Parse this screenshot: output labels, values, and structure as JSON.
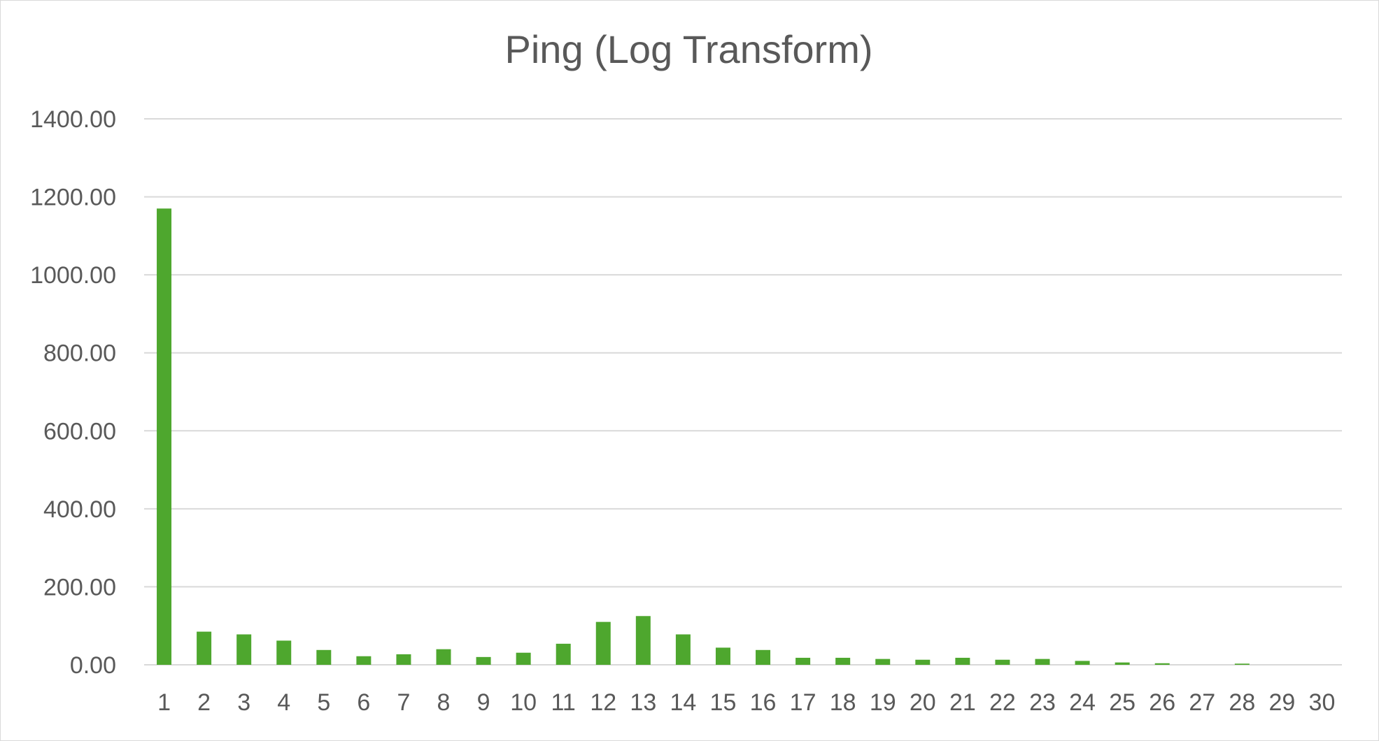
{
  "chart_data": {
    "type": "bar",
    "title": "Ping (Log Transform)",
    "xlabel": "",
    "ylabel": "",
    "categories": [
      "1",
      "2",
      "3",
      "4",
      "5",
      "6",
      "7",
      "8",
      "9",
      "10",
      "11",
      "12",
      "13",
      "14",
      "15",
      "16",
      "17",
      "18",
      "19",
      "20",
      "21",
      "22",
      "23",
      "24",
      "25",
      "26",
      "27",
      "28",
      "29",
      "30"
    ],
    "series": [
      {
        "values": [
          1170,
          85,
          78,
          62,
          38,
          22,
          27,
          40,
          20,
          31,
          54,
          110,
          125,
          78,
          44,
          38,
          18,
          18,
          15,
          13,
          18,
          13,
          15,
          10,
          6,
          4,
          0,
          3,
          0,
          0
        ],
        "color": "#4ea72e"
      }
    ],
    "ylim": [
      0,
      1400
    ],
    "yticks": [
      "0.00",
      "200.00",
      "400.00",
      "600.00",
      "800.00",
      "1000.00",
      "1200.00",
      "1400.00"
    ],
    "ytick_values": [
      0,
      200,
      400,
      600,
      800,
      1000,
      1200,
      1400
    ],
    "grid": true,
    "legend": "none"
  },
  "colors": {
    "bar": "#4ea72e",
    "grid": "#d9d9d9",
    "text": "#595959"
  }
}
